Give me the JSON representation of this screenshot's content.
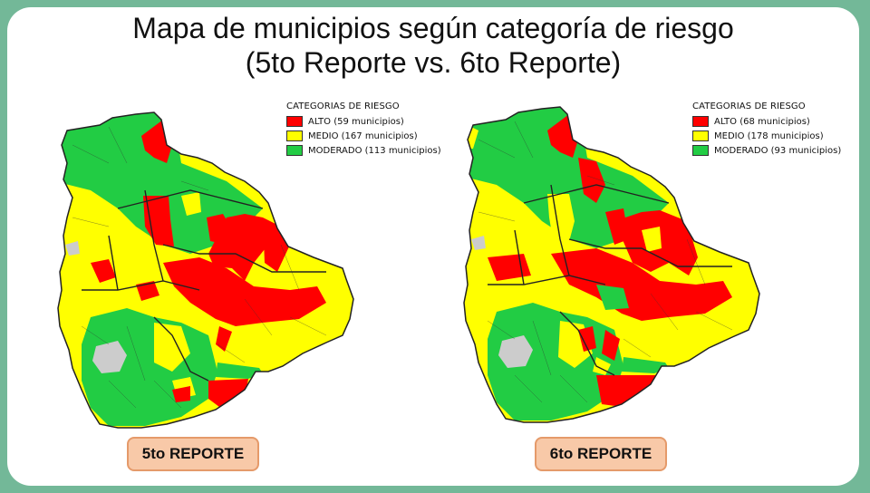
{
  "title": {
    "line1": "Mapa de municipios según categoría de riesgo",
    "line2": "(5to Reporte vs. 6to Reporte)"
  },
  "colors": {
    "alto": "#ff0000",
    "medio": "#ffff00",
    "moderado": "#22cc44",
    "lake": "#cccccc",
    "slide_bg": "#73b898",
    "button_bg": "#f8c9a8"
  },
  "maps": [
    {
      "legend": {
        "title": "CATEGORIAS DE RIESGO",
        "items": [
          {
            "label": "ALTO (59 municipios)",
            "color": "#ff0000"
          },
          {
            "label": "MEDIO (167 municipios)",
            "color": "#ffff00"
          },
          {
            "label": "MODERADO (113 municipios)",
            "color": "#22cc44"
          }
        ]
      },
      "button": "5to REPORTE"
    },
    {
      "legend": {
        "title": "CATEGORIAS DE RIESGO",
        "items": [
          {
            "label": "ALTO (68 municipios)",
            "color": "#ff0000"
          },
          {
            "label": "MEDIO (178 municipios)",
            "color": "#ffff00"
          },
          {
            "label": "MODERADO (93 municipios)",
            "color": "#22cc44"
          }
        ]
      },
      "button": "6to REPORTE"
    }
  ]
}
